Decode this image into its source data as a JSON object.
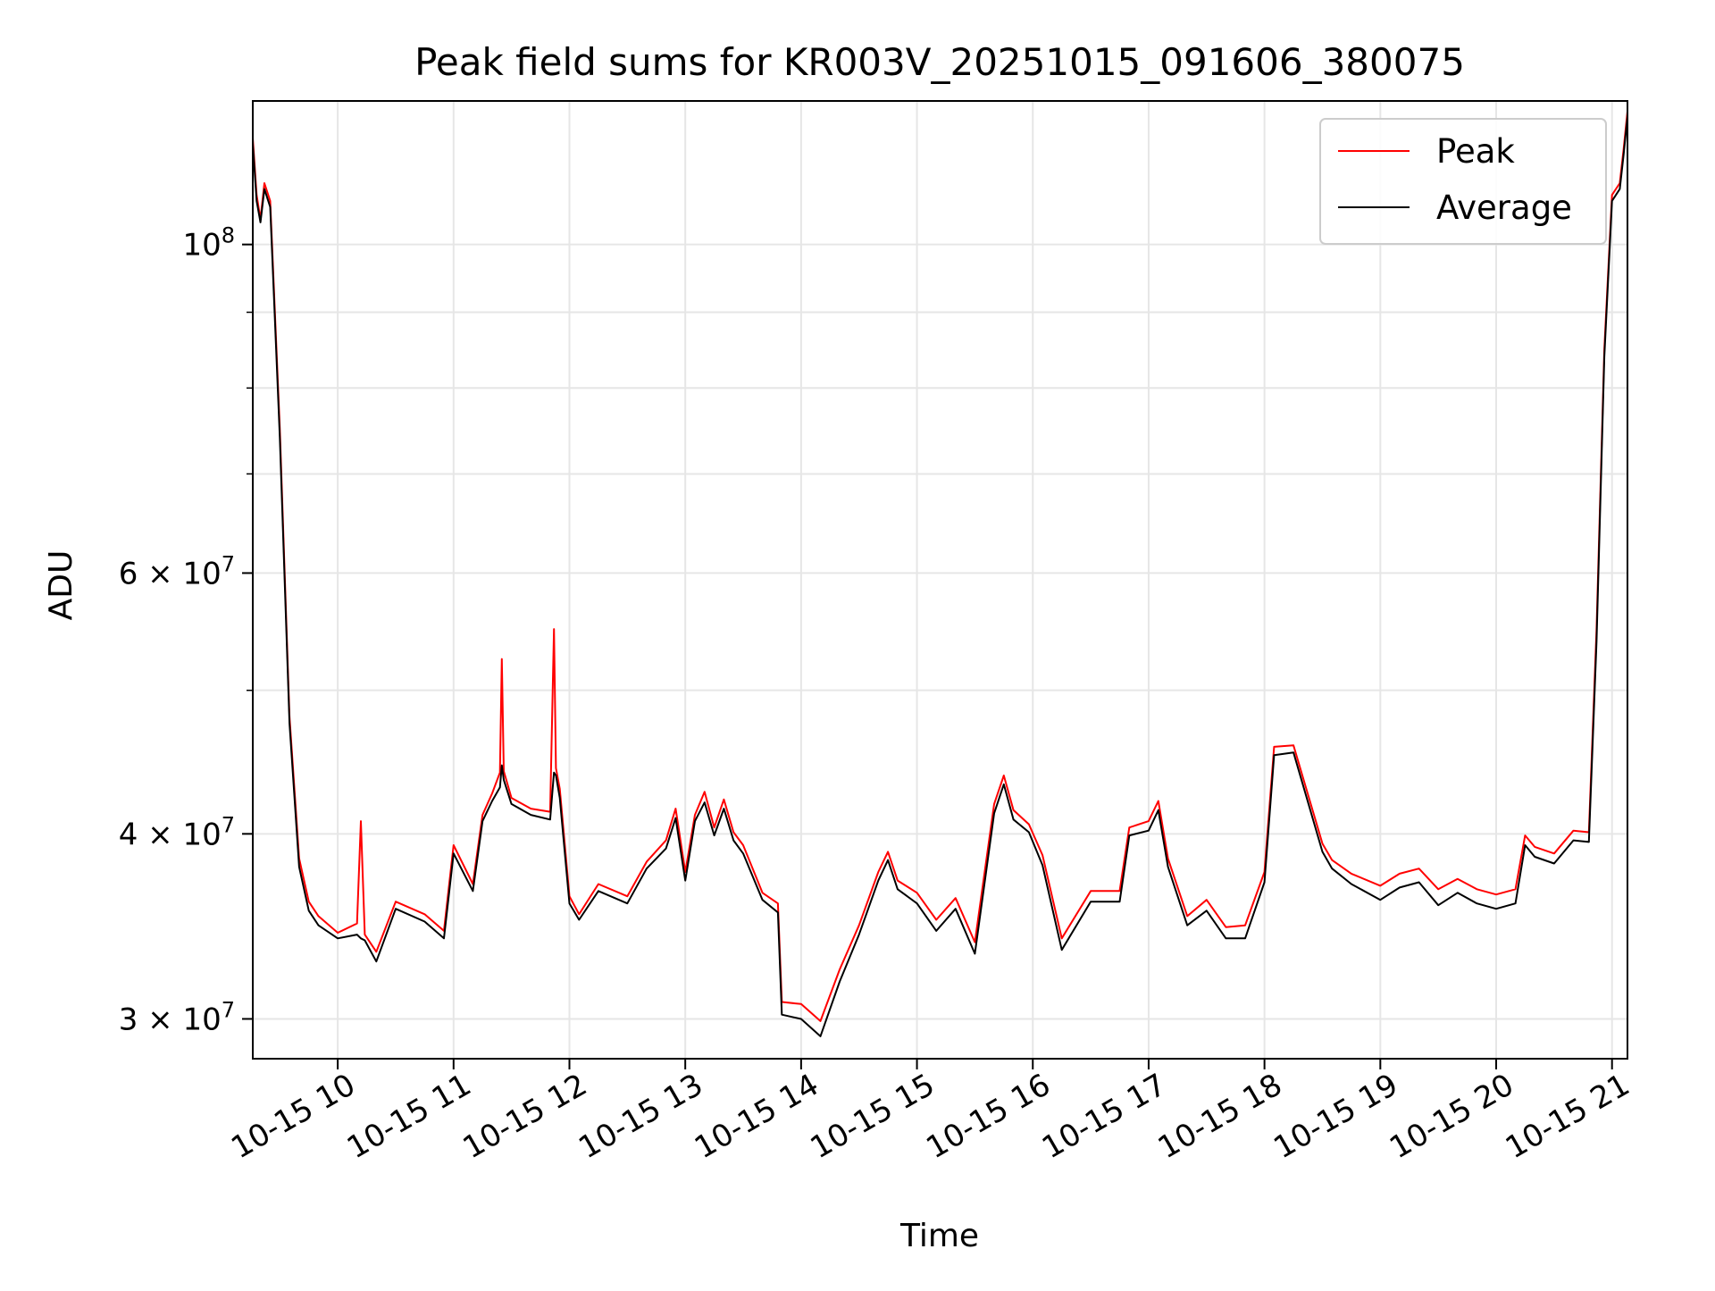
{
  "chart_data": {
    "type": "line",
    "title": "Peak field sums for KR003V_20251015_091606_380075",
    "xlabel": "Time",
    "ylabel": "ADU",
    "yscale": "log",
    "xlim": [
      "2025-10-15 09:16",
      "2025-10-15 21:08"
    ],
    "ylim": [
      28200000,
      125000000
    ],
    "grid": true,
    "legend_position": "top-right",
    "x_ticks": [
      {
        "value": "2025-10-15 10:00",
        "label": "10-15 10"
      },
      {
        "value": "2025-10-15 11:00",
        "label": "10-15 11"
      },
      {
        "value": "2025-10-15 12:00",
        "label": "10-15 12"
      },
      {
        "value": "2025-10-15 13:00",
        "label": "10-15 13"
      },
      {
        "value": "2025-10-15 14:00",
        "label": "10-15 14"
      },
      {
        "value": "2025-10-15 15:00",
        "label": "10-15 15"
      },
      {
        "value": "2025-10-15 16:00",
        "label": "10-15 16"
      },
      {
        "value": "2025-10-15 17:00",
        "label": "10-15 17"
      },
      {
        "value": "2025-10-15 18:00",
        "label": "10-15 18"
      },
      {
        "value": "2025-10-15 19:00",
        "label": "10-15 19"
      },
      {
        "value": "2025-10-15 20:00",
        "label": "10-15 20"
      },
      {
        "value": "2025-10-15 21:00",
        "label": "10-15 21"
      }
    ],
    "y_major_ticks": [
      {
        "value": 30000000,
        "base": "3 × 10",
        "exp": "7"
      },
      {
        "value": 40000000,
        "base": "4 × 10",
        "exp": "7"
      },
      {
        "value": 60000000,
        "base": "6 × 10",
        "exp": "7"
      },
      {
        "value": 100000000,
        "base": "10",
        "exp": "8"
      }
    ],
    "y_minor_ticks": [
      50000000,
      70000000,
      80000000,
      90000000
    ],
    "series": [
      {
        "name": "Peak",
        "color": "#ff0000",
        "x": [
          "2025-10-15 09:16",
          "2025-10-15 09:18",
          "2025-10-15 09:20",
          "2025-10-15 09:22",
          "2025-10-15 09:25",
          "2025-10-15 09:30",
          "2025-10-15 09:35",
          "2025-10-15 09:40",
          "2025-10-15 09:45",
          "2025-10-15 09:50",
          "2025-10-15 10:00",
          "2025-10-15 10:10",
          "2025-10-15 10:12",
          "2025-10-15 10:14",
          "2025-10-15 10:20",
          "2025-10-15 10:30",
          "2025-10-15 10:45",
          "2025-10-15 10:55",
          "2025-10-15 11:00",
          "2025-10-15 11:10",
          "2025-10-15 11:15",
          "2025-10-15 11:20",
          "2025-10-15 11:24",
          "2025-10-15 11:25",
          "2025-10-15 11:26",
          "2025-10-15 11:30",
          "2025-10-15 11:40",
          "2025-10-15 11:50",
          "2025-10-15 11:52",
          "2025-10-15 11:53",
          "2025-10-15 11:55",
          "2025-10-15 12:00",
          "2025-10-15 12:05",
          "2025-10-15 12:15",
          "2025-10-15 12:30",
          "2025-10-15 12:40",
          "2025-10-15 12:50",
          "2025-10-15 12:55",
          "2025-10-15 13:00",
          "2025-10-15 13:05",
          "2025-10-15 13:10",
          "2025-10-15 13:15",
          "2025-10-15 13:20",
          "2025-10-15 13:25",
          "2025-10-15 13:30",
          "2025-10-15 13:40",
          "2025-10-15 13:48",
          "2025-10-15 13:50",
          "2025-10-15 14:00",
          "2025-10-15 14:10",
          "2025-10-15 14:20",
          "2025-10-15 14:30",
          "2025-10-15 14:40",
          "2025-10-15 14:45",
          "2025-10-15 14:50",
          "2025-10-15 15:00",
          "2025-10-15 15:10",
          "2025-10-15 15:20",
          "2025-10-15 15:30",
          "2025-10-15 15:40",
          "2025-10-15 15:45",
          "2025-10-15 15:50",
          "2025-10-15 15:58",
          "2025-10-15 16:05",
          "2025-10-15 16:15",
          "2025-10-15 16:30",
          "2025-10-15 16:45",
          "2025-10-15 16:50",
          "2025-10-15 17:00",
          "2025-10-15 17:05",
          "2025-10-15 17:10",
          "2025-10-15 17:20",
          "2025-10-15 17:30",
          "2025-10-15 17:40",
          "2025-10-15 17:50",
          "2025-10-15 18:00",
          "2025-10-15 18:05",
          "2025-10-15 18:15",
          "2025-10-15 18:30",
          "2025-10-15 18:35",
          "2025-10-15 18:45",
          "2025-10-15 19:00",
          "2025-10-15 19:10",
          "2025-10-15 19:20",
          "2025-10-15 19:30",
          "2025-10-15 19:40",
          "2025-10-15 19:50",
          "2025-10-15 20:00",
          "2025-10-15 20:10",
          "2025-10-15 20:15",
          "2025-10-15 20:20",
          "2025-10-15 20:30",
          "2025-10-15 20:40",
          "2025-10-15 20:48",
          "2025-10-15 20:52",
          "2025-10-15 20:56",
          "2025-10-15 21:00",
          "2025-10-15 21:04",
          "2025-10-15 21:06",
          "2025-10-15 21:08"
        ],
        "values": [
          118000000,
          108000000,
          104000000,
          110000000,
          107000000,
          75000000,
          48000000,
          38500000,
          36000000,
          35200000,
          34300000,
          34800000,
          40800000,
          34200000,
          33300000,
          36000000,
          35300000,
          34400000,
          39300000,
          37000000,
          41200000,
          42600000,
          44000000,
          52500000,
          44100000,
          42300000,
          41600000,
          41400000,
          55000000,
          44300000,
          42900000,
          36300000,
          35300000,
          37000000,
          36300000,
          38300000,
          39600000,
          41600000,
          37700000,
          41200000,
          42700000,
          40400000,
          42200000,
          40100000,
          39300000,
          36500000,
          35900000,
          30800000,
          30700000,
          29900000,
          32400000,
          34700000,
          37700000,
          38900000,
          37200000,
          36500000,
          35000000,
          36200000,
          33800000,
          41900000,
          43800000,
          41500000,
          40600000,
          38700000,
          34000000,
          36600000,
          36600000,
          40400000,
          40800000,
          42100000,
          38500000,
          35200000,
          36100000,
          34600000,
          34700000,
          37700000,
          45800000,
          45900000,
          39400000,
          38400000,
          37600000,
          36900000,
          37600000,
          37900000,
          36700000,
          37300000,
          36700000,
          36400000,
          36700000,
          39900000,
          39200000,
          38800000,
          40200000,
          40100000,
          55000000,
          85000000,
          108000000,
          110000000,
          116000000,
          123000000
        ]
      },
      {
        "name": "Average",
        "color": "#000000",
        "x": [
          "2025-10-15 09:16",
          "2025-10-15 09:18",
          "2025-10-15 09:20",
          "2025-10-15 09:22",
          "2025-10-15 09:25",
          "2025-10-15 09:30",
          "2025-10-15 09:35",
          "2025-10-15 09:40",
          "2025-10-15 09:45",
          "2025-10-15 09:50",
          "2025-10-15 10:00",
          "2025-10-15 10:10",
          "2025-10-15 10:12",
          "2025-10-15 10:14",
          "2025-10-15 10:20",
          "2025-10-15 10:30",
          "2025-10-15 10:45",
          "2025-10-15 10:55",
          "2025-10-15 11:00",
          "2025-10-15 11:10",
          "2025-10-15 11:15",
          "2025-10-15 11:20",
          "2025-10-15 11:24",
          "2025-10-15 11:25",
          "2025-10-15 11:26",
          "2025-10-15 11:30",
          "2025-10-15 11:40",
          "2025-10-15 11:50",
          "2025-10-15 11:52",
          "2025-10-15 11:53",
          "2025-10-15 11:55",
          "2025-10-15 12:00",
          "2025-10-15 12:05",
          "2025-10-15 12:15",
          "2025-10-15 12:30",
          "2025-10-15 12:40",
          "2025-10-15 12:50",
          "2025-10-15 12:55",
          "2025-10-15 13:00",
          "2025-10-15 13:05",
          "2025-10-15 13:10",
          "2025-10-15 13:15",
          "2025-10-15 13:20",
          "2025-10-15 13:25",
          "2025-10-15 13:30",
          "2025-10-15 13:40",
          "2025-10-15 13:48",
          "2025-10-15 13:50",
          "2025-10-15 14:00",
          "2025-10-15 14:10",
          "2025-10-15 14:20",
          "2025-10-15 14:30",
          "2025-10-15 14:40",
          "2025-10-15 14:45",
          "2025-10-15 14:50",
          "2025-10-15 15:00",
          "2025-10-15 15:10",
          "2025-10-15 15:20",
          "2025-10-15 15:30",
          "2025-10-15 15:40",
          "2025-10-15 15:45",
          "2025-10-15 15:50",
          "2025-10-15 15:58",
          "2025-10-15 16:05",
          "2025-10-15 16:15",
          "2025-10-15 16:30",
          "2025-10-15 16:45",
          "2025-10-15 16:50",
          "2025-10-15 17:00",
          "2025-10-15 17:05",
          "2025-10-15 17:10",
          "2025-10-15 17:20",
          "2025-10-15 17:30",
          "2025-10-15 17:40",
          "2025-10-15 17:50",
          "2025-10-15 18:00",
          "2025-10-15 18:05",
          "2025-10-15 18:15",
          "2025-10-15 18:30",
          "2025-10-15 18:35",
          "2025-10-15 18:45",
          "2025-10-15 19:00",
          "2025-10-15 19:10",
          "2025-10-15 19:20",
          "2025-10-15 19:30",
          "2025-10-15 19:40",
          "2025-10-15 19:50",
          "2025-10-15 20:00",
          "2025-10-15 20:10",
          "2025-10-15 20:15",
          "2025-10-15 20:20",
          "2025-10-15 20:30",
          "2025-10-15 20:40",
          "2025-10-15 20:48",
          "2025-10-15 20:52",
          "2025-10-15 20:56",
          "2025-10-15 21:00",
          "2025-10-15 21:04",
          "2025-10-15 21:06",
          "2025-10-15 21:08"
        ],
        "values": [
          117000000,
          107000000,
          103500000,
          109000000,
          106000000,
          74000000,
          47500000,
          38000000,
          35500000,
          34700000,
          34000000,
          34200000,
          34000000,
          33900000,
          32800000,
          35600000,
          34900000,
          34000000,
          38800000,
          36600000,
          40800000,
          42100000,
          43000000,
          44500000,
          43500000,
          41900000,
          41200000,
          40900000,
          44000000,
          43800000,
          42300000,
          35900000,
          35000000,
          36600000,
          35900000,
          37900000,
          39100000,
          41000000,
          37200000,
          40800000,
          42000000,
          39900000,
          41600000,
          39600000,
          38800000,
          36100000,
          35400000,
          30200000,
          30000000,
          29200000,
          31800000,
          34200000,
          37200000,
          38400000,
          36700000,
          35900000,
          34400000,
          35600000,
          33200000,
          41300000,
          43200000,
          40900000,
          40100000,
          38100000,
          33400000,
          36000000,
          36000000,
          39900000,
          40200000,
          41500000,
          38000000,
          34700000,
          35500000,
          34000000,
          34000000,
          37100000,
          45200000,
          45400000,
          38900000,
          37900000,
          37000000,
          36100000,
          36800000,
          37100000,
          35800000,
          36500000,
          35900000,
          35600000,
          35900000,
          39300000,
          38600000,
          38200000,
          39600000,
          39500000,
          54000000,
          84000000,
          107000000,
          109000000,
          115000000,
          122000000
        ]
      }
    ]
  }
}
